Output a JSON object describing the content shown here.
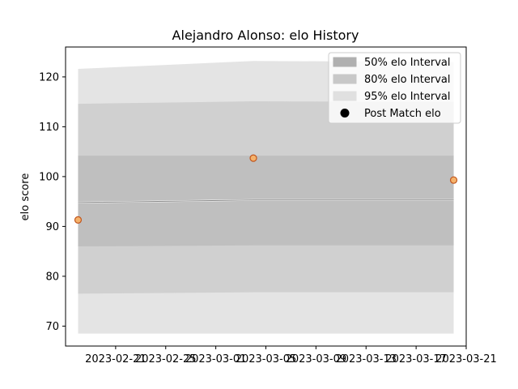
{
  "chart_data": {
    "type": "area",
    "title": "Alejandro Alonso: elo History",
    "xlabel": "",
    "ylabel": "elo score",
    "ylim": [
      66,
      126
    ],
    "xlim": [
      "2023-02-17",
      "2023-03-21"
    ],
    "y_ticks": [
      70,
      80,
      90,
      100,
      110,
      120
    ],
    "x_ticks": [
      "2023-02-21",
      "2023-02-25",
      "2023-03-01",
      "2023-03-05",
      "2023-03-09",
      "2023-03-13",
      "2023-03-17",
      "2023-03-21"
    ],
    "x": [
      "2023-02-18",
      "2023-03-04",
      "2023-03-20"
    ],
    "mean_line": [
      94.8,
      95.3,
      95.3
    ],
    "bands": [
      {
        "name": "95% elo Interval",
        "lower": [
          68.5,
          68.5,
          68.5
        ],
        "upper": [
          121.6,
          123.2,
          123.0
        ],
        "color": "#e4e4e4"
      },
      {
        "name": "80% elo Interval",
        "lower": [
          76.5,
          76.8,
          76.8
        ],
        "upper": [
          114.6,
          115.1,
          115.0
        ],
        "color": "#d0d0d0"
      },
      {
        "name": "50% elo Interval",
        "lower": [
          86.0,
          86.2,
          86.2
        ],
        "upper": [
          104.2,
          104.2,
          104.2
        ],
        "color": "#bfbfbf"
      }
    ],
    "points": {
      "name": "Post Match elo",
      "x": [
        "2023-02-18",
        "2023-03-04",
        "2023-03-20"
      ],
      "y": [
        91.3,
        103.7,
        99.3
      ],
      "color": "#f5b26b",
      "edge_color": "#c0561e"
    },
    "legend": {
      "position": "top-right",
      "entries": [
        {
          "label": "50% elo Interval",
          "swatch": "#b0b0b0"
        },
        {
          "label": "80% elo Interval",
          "swatch": "#c8c8c8"
        },
        {
          "label": "95% elo Interval",
          "swatch": "#e0e0e0"
        },
        {
          "label": "Post Match elo",
          "swatch": "#000000"
        }
      ]
    }
  }
}
